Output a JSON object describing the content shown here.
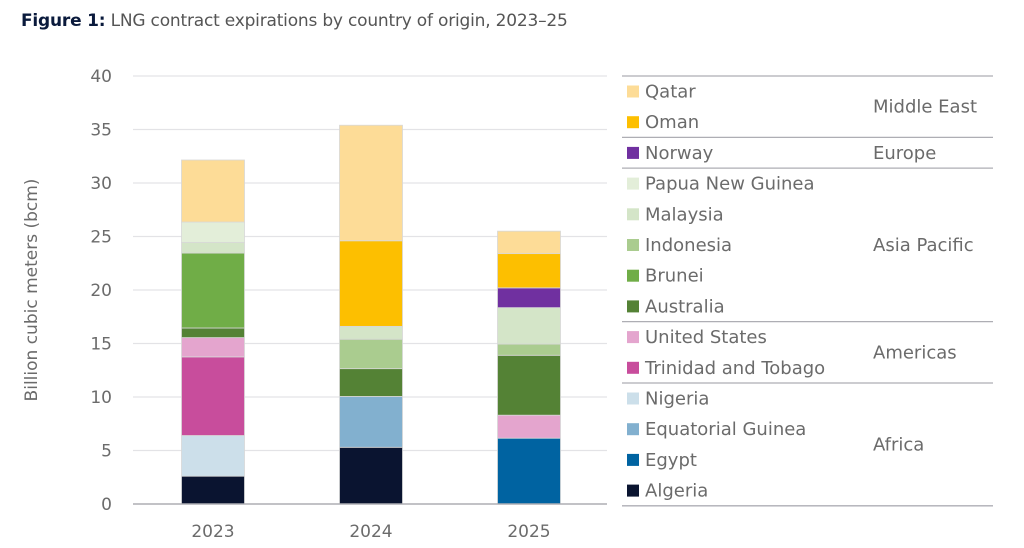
{
  "title": {
    "prefix": "Figure 1:",
    "text": "LNG contract expirations by country of origin, 2023–25"
  },
  "chart_data": {
    "type": "bar",
    "stacked": true,
    "title": "Figure 1: LNG contract expirations by country of origin, 2023–25",
    "ylabel": "Billion cubic meters (bcm)",
    "xlabel": "",
    "ylim": [
      0,
      40
    ],
    "yticks": [
      0,
      5,
      10,
      15,
      20,
      25,
      30,
      35,
      40
    ],
    "grid": true,
    "legend_placement": "right",
    "categories": [
      "2023",
      "2024",
      "2025"
    ],
    "series": [
      {
        "name": "Algeria",
        "region": "Africa",
        "color": "#0a1430",
        "values": [
          2.6,
          5.3,
          0
        ]
      },
      {
        "name": "Egypt",
        "region": "Africa",
        "color": "#0063a1",
        "values": [
          0,
          0,
          6.15
        ]
      },
      {
        "name": "Equatorial Guinea",
        "region": "Africa",
        "color": "#82b0cf",
        "values": [
          0,
          4.75,
          0
        ]
      },
      {
        "name": "Nigeria",
        "region": "Africa",
        "color": "#ccdfea",
        "values": [
          3.8,
          0,
          0
        ]
      },
      {
        "name": "Trinidad and Tobago",
        "region": "Americas",
        "color": "#c84d9c",
        "values": [
          7.35,
          0,
          0
        ]
      },
      {
        "name": "United States",
        "region": "Americas",
        "color": "#e4a5ce",
        "values": [
          1.8,
          0,
          2.15
        ]
      },
      {
        "name": "Australia",
        "region": "Asia Pacific",
        "color": "#548235",
        "values": [
          0.9,
          2.6,
          5.6
        ]
      },
      {
        "name": "Brunei",
        "region": "Asia Pacific",
        "color": "#70ad47",
        "values": [
          7.0,
          0,
          0
        ]
      },
      {
        "name": "Indonesia",
        "region": "Asia Pacific",
        "color": "#aacc8f",
        "values": [
          0,
          2.75,
          1.05
        ]
      },
      {
        "name": "Malaysia",
        "region": "Asia Pacific",
        "color": "#d4e5c8",
        "values": [
          1.0,
          1.2,
          3.4
        ]
      },
      {
        "name": "Papua New Guinea",
        "region": "Asia Pacific",
        "color": "#e3eed9",
        "values": [
          1.9,
          0,
          0
        ]
      },
      {
        "name": "Norway",
        "region": "Europe",
        "color": "#7030a0",
        "values": [
          0,
          0,
          1.85
        ]
      },
      {
        "name": "Oman",
        "region": "Middle East",
        "color": "#fdbf00",
        "values": [
          0,
          8.0,
          3.2
        ]
      },
      {
        "name": "Qatar",
        "region": "Middle East",
        "color": "#fddc97",
        "values": [
          5.8,
          10.8,
          2.1
        ]
      }
    ],
    "legend_groups": [
      {
        "region": "Middle East",
        "items": [
          "Qatar",
          "Oman"
        ]
      },
      {
        "region": "Europe",
        "items": [
          "Norway"
        ]
      },
      {
        "region": "Asia Pacific",
        "items": [
          "Papua New Guinea",
          "Malaysia",
          "Indonesia",
          "Brunei",
          "Australia"
        ]
      },
      {
        "region": "Americas",
        "items": [
          "United States",
          "Trinidad and Tobago"
        ]
      },
      {
        "region": "Africa",
        "items": [
          "Nigeria",
          "Equatorial Guinea",
          "Egypt",
          "Algeria"
        ]
      }
    ]
  }
}
